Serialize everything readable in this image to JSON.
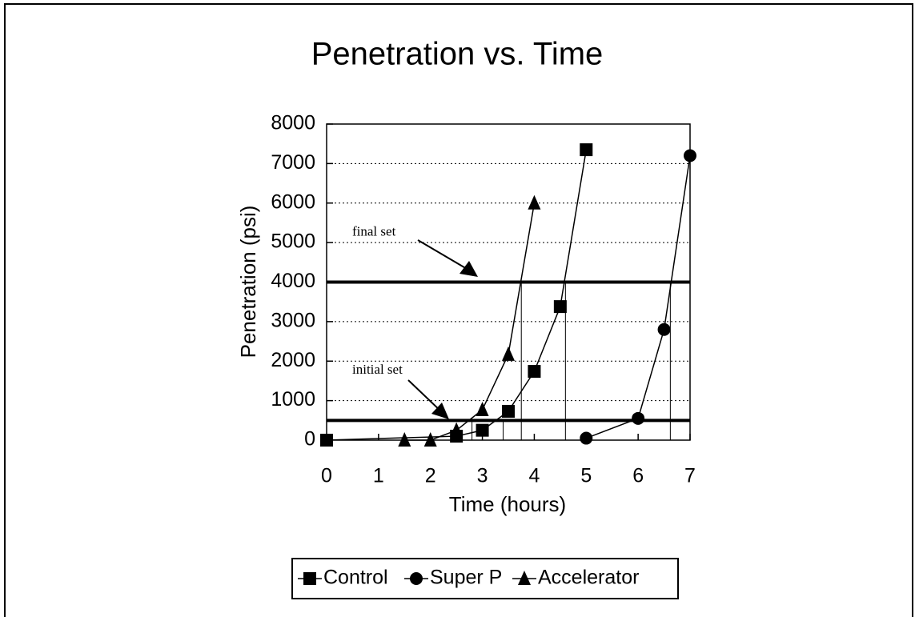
{
  "chart_data": {
    "type": "line",
    "title": "Penetration vs. Time",
    "xlabel": "Time (hours)",
    "ylabel": "Penetration (psi)",
    "xlim": [
      0,
      7
    ],
    "xticks": [
      0,
      1,
      2,
      3,
      4,
      5,
      6,
      7
    ],
    "ylim": [
      0,
      8000
    ],
    "yticks": [
      0,
      1000,
      2000,
      3000,
      4000,
      5000,
      6000,
      7000,
      8000
    ],
    "grid": true,
    "legend": "bottom",
    "series": [
      {
        "name": "Control",
        "color": "#000000",
        "marker": "square",
        "x": [
          0,
          2.5,
          3,
          3.5,
          4,
          4.5,
          5
        ],
        "values": [
          0,
          100,
          250,
          730,
          1740,
          3380,
          7350
        ]
      },
      {
        "name": "Super P",
        "color": "#000000",
        "marker": "circle",
        "x": [
          5,
          6,
          6.5,
          7
        ],
        "values": [
          50,
          550,
          2800,
          7200
        ]
      },
      {
        "name": "Accelerator",
        "color": "#000000",
        "marker": "triangle",
        "x": [
          1.5,
          2,
          2.5,
          3,
          3.5,
          4
        ],
        "values": [
          0,
          0,
          250,
          770,
          2170,
          6000
        ]
      }
    ],
    "reference_lines": [
      {
        "value": 4000,
        "label": "final set"
      },
      {
        "value": 500,
        "label": "initial set"
      }
    ],
    "drop_lines": [
      {
        "x": 3.75,
        "y": 4000
      },
      {
        "x": 4.6,
        "y": 4000
      },
      {
        "x": 6.62,
        "y": 4000
      },
      {
        "x": 2.8,
        "y": 500
      },
      {
        "x": 3.4,
        "y": 500
      }
    ]
  }
}
